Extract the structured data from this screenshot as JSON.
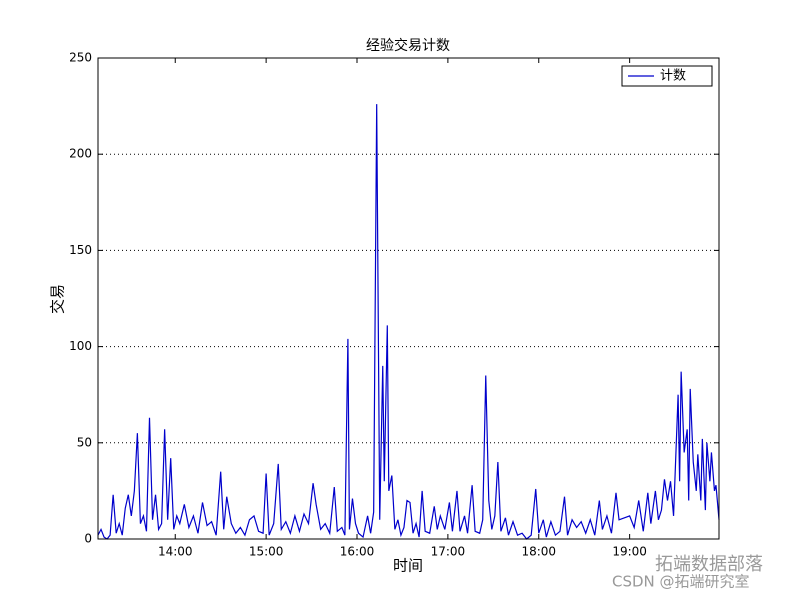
{
  "chart_data": {
    "type": "line",
    "title": "经验交易计数",
    "x_label": "时间",
    "y_label": "交易",
    "x": [
      "13:09",
      "13:11",
      "13:13",
      "13:15",
      "13:17",
      "13:19",
      "13:21",
      "13:23",
      "13:25",
      "13:27",
      "13:29",
      "13:31",
      "13:33",
      "13:35",
      "13:37",
      "13:39",
      "13:41",
      "13:43",
      "13:45",
      "13:47",
      "13:49",
      "13:51",
      "13:53",
      "13:55",
      "13:57",
      "13:59",
      "14:01",
      "14:03",
      "14:06",
      "14:09",
      "14:12",
      "14:15",
      "14:18",
      "14:21",
      "14:24",
      "14:27",
      "14:30",
      "14:32",
      "14:34",
      "14:37",
      "14:40",
      "14:43",
      "14:46",
      "14:49",
      "14:52",
      "14:55",
      "14:58",
      "15:00",
      "15:02",
      "15:05",
      "15:08",
      "15:10",
      "15:13",
      "15:16",
      "15:19",
      "15:22",
      "15:25",
      "15:28",
      "15:31",
      "15:33",
      "15:36",
      "15:39",
      "15:42",
      "15:45",
      "15:47",
      "15:50",
      "15:52",
      "15:54",
      "15:55",
      "15:57",
      "15:59",
      "16:01",
      "16:04",
      "16:07",
      "16:09",
      "16:11",
      "16:13",
      "16:15",
      "16:17",
      "16:18",
      "16:20",
      "16:21",
      "16:23",
      "16:25",
      "16:27",
      "16:29",
      "16:31",
      "16:33",
      "16:35",
      "16:37",
      "16:39",
      "16:41",
      "16:43",
      "16:45",
      "16:48",
      "16:51",
      "16:53",
      "16:55",
      "16:58",
      "17:01",
      "17:03",
      "17:06",
      "17:08",
      "17:11",
      "17:13",
      "17:16",
      "17:18",
      "17:21",
      "17:23",
      "17:25",
      "17:27",
      "17:29",
      "17:31",
      "17:33",
      "17:35",
      "17:38",
      "17:40",
      "17:43",
      "17:46",
      "17:49",
      "17:52",
      "17:55",
      "17:58",
      "18:00",
      "18:03",
      "18:05",
      "18:08",
      "18:11",
      "18:14",
      "18:17",
      "18:19",
      "18:22",
      "18:25",
      "18:28",
      "18:31",
      "18:34",
      "18:37",
      "18:40",
      "18:42",
      "18:45",
      "18:48",
      "18:51",
      "18:53",
      "19:00",
      "19:03",
      "19:06",
      "19:09",
      "19:12",
      "19:14",
      "19:17",
      "19:19",
      "19:21",
      "19:23",
      "19:25",
      "19:27",
      "19:29",
      "19:32",
      "19:33",
      "19:34",
      "19:36",
      "19:38",
      "19:39",
      "19:40",
      "19:42",
      "19:44",
      "19:45",
      "19:47",
      "19:48",
      "19:50",
      "19:51",
      "19:53",
      "19:54",
      "19:56",
      "19:57",
      "19:59"
    ],
    "series": [
      {
        "name": "计数",
        "color": "#0000cc",
        "values": [
          2,
          5,
          1,
          0,
          2,
          23,
          3,
          8,
          2,
          16,
          23,
          12,
          25,
          55,
          8,
          12,
          4,
          63,
          10,
          23,
          5,
          8,
          57,
          10,
          42,
          5,
          12,
          8,
          18,
          6,
          12,
          3,
          19,
          7,
          9,
          2,
          35,
          5,
          22,
          8,
          3,
          6,
          2,
          10,
          12,
          4,
          3,
          34,
          2,
          8,
          39,
          5,
          9,
          3,
          12,
          4,
          13,
          8,
          29,
          18,
          5,
          8,
          3,
          27,
          4,
          6,
          2,
          104,
          5,
          21,
          8,
          3,
          1,
          12,
          3,
          14,
          226,
          10,
          90,
          30,
          111,
          25,
          33,
          5,
          10,
          2,
          6,
          20,
          19,
          3,
          8,
          1,
          25,
          4,
          3,
          17,
          5,
          12,
          5,
          19,
          4,
          25,
          4,
          12,
          3,
          28,
          4,
          3,
          10,
          85,
          20,
          5,
          12,
          40,
          4,
          11,
          2,
          9,
          2,
          3,
          0,
          2,
          26,
          3,
          10,
          1,
          9,
          2,
          4,
          22,
          2,
          10,
          6,
          9,
          3,
          10,
          2,
          20,
          5,
          12,
          3,
          24,
          10,
          12,
          6,
          20,
          4,
          24,
          8,
          25,
          10,
          15,
          31,
          20,
          30,
          12,
          75,
          30,
          87,
          45,
          57,
          20,
          78,
          40,
          25,
          44,
          20,
          52,
          15,
          50,
          30,
          45,
          25,
          28,
          10
        ]
      }
    ],
    "xlim": [
      "13:09",
      "19:59"
    ],
    "xticks": [
      "14:00",
      "15:00",
      "16:00",
      "17:00",
      "18:00",
      "19:00"
    ],
    "ylim": [
      0,
      250
    ],
    "yticks": [
      0,
      50,
      100,
      150,
      200,
      250
    ],
    "grid": true,
    "legend": "upper right",
    "watermark": [
      "拓端数据部落",
      "CSDN @拓端研究室"
    ]
  }
}
